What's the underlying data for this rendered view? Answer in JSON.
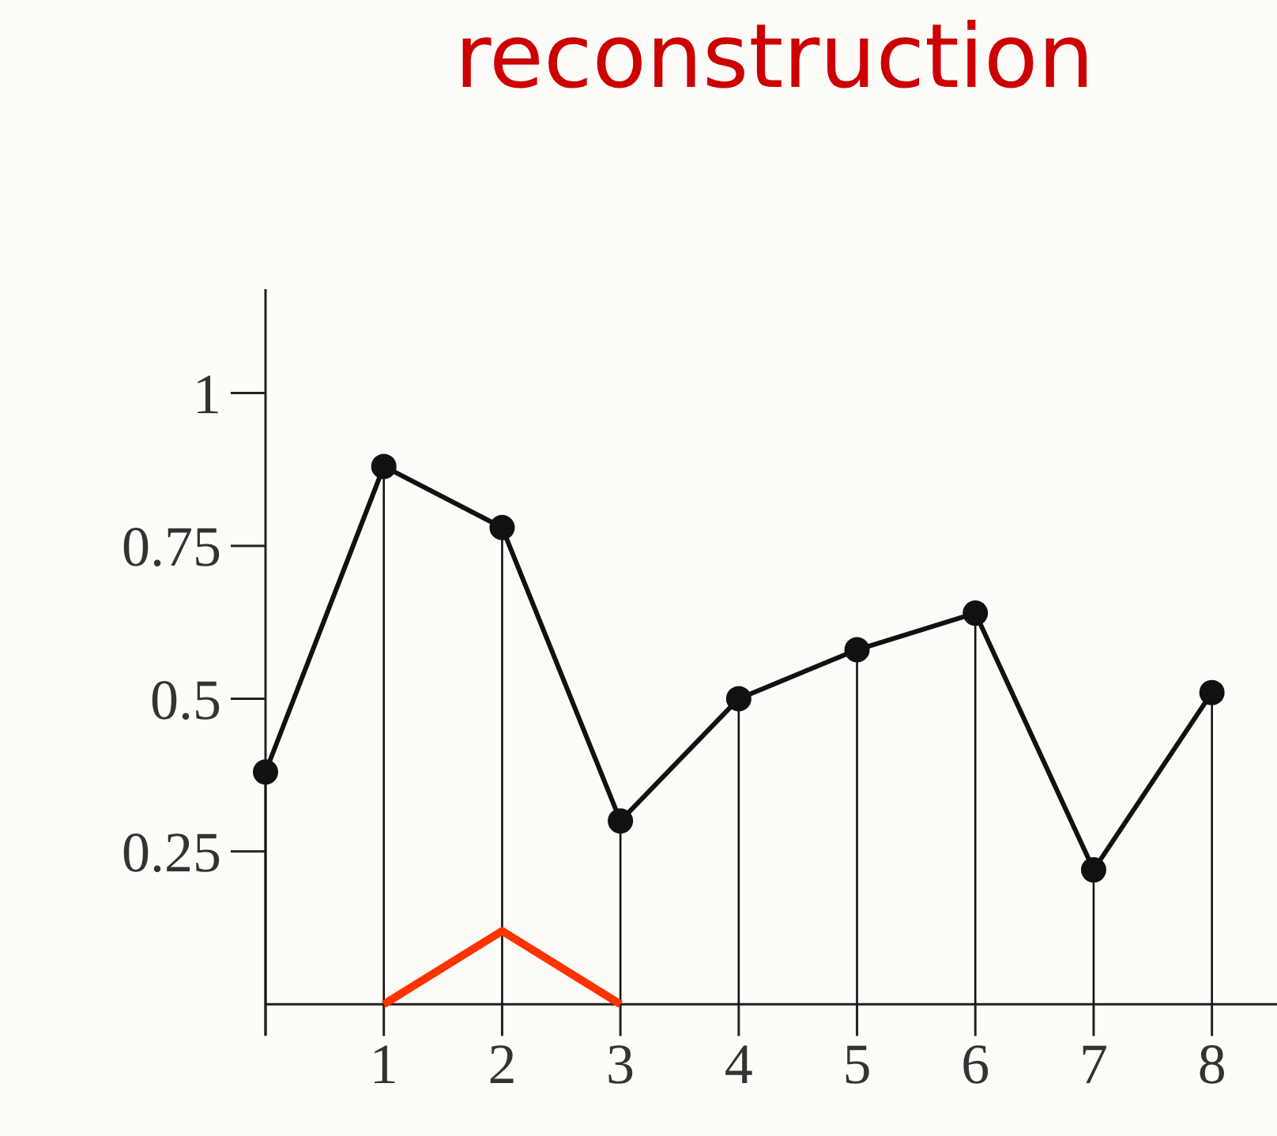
{
  "chart_data": {
    "type": "line",
    "title": "reconstruction",
    "x": [
      0,
      1,
      2,
      3,
      4,
      5,
      6,
      7,
      8
    ],
    "series": [
      {
        "type": "lollipop",
        "color": "#111111",
        "values": [
          0.38,
          0.88,
          0.78,
          0.3,
          0.5,
          0.58,
          0.64,
          0.22,
          0.51
        ],
        "marker": "circle"
      },
      {
        "color": "#111111",
        "values": [
          0.38,
          0.88,
          0.78,
          0.3,
          0.5,
          0.58,
          0.64,
          0.22,
          0.51
        ],
        "marker": "none"
      },
      {
        "type": "line",
        "color": "#ff3300",
        "x": [
          1,
          2,
          3
        ],
        "values": [
          0,
          0.12,
          0
        ],
        "marker": "none"
      }
    ],
    "xlim": [
      0,
      8.55
    ],
    "xticks": [
      {
        "value": 0,
        "label": null
      },
      1,
      2,
      3,
      4,
      5,
      6,
      7,
      8
    ],
    "ylim": [
      -0.05,
      1.17
    ],
    "yticks": [
      0.25,
      0.5,
      0.75,
      1
    ]
  }
}
